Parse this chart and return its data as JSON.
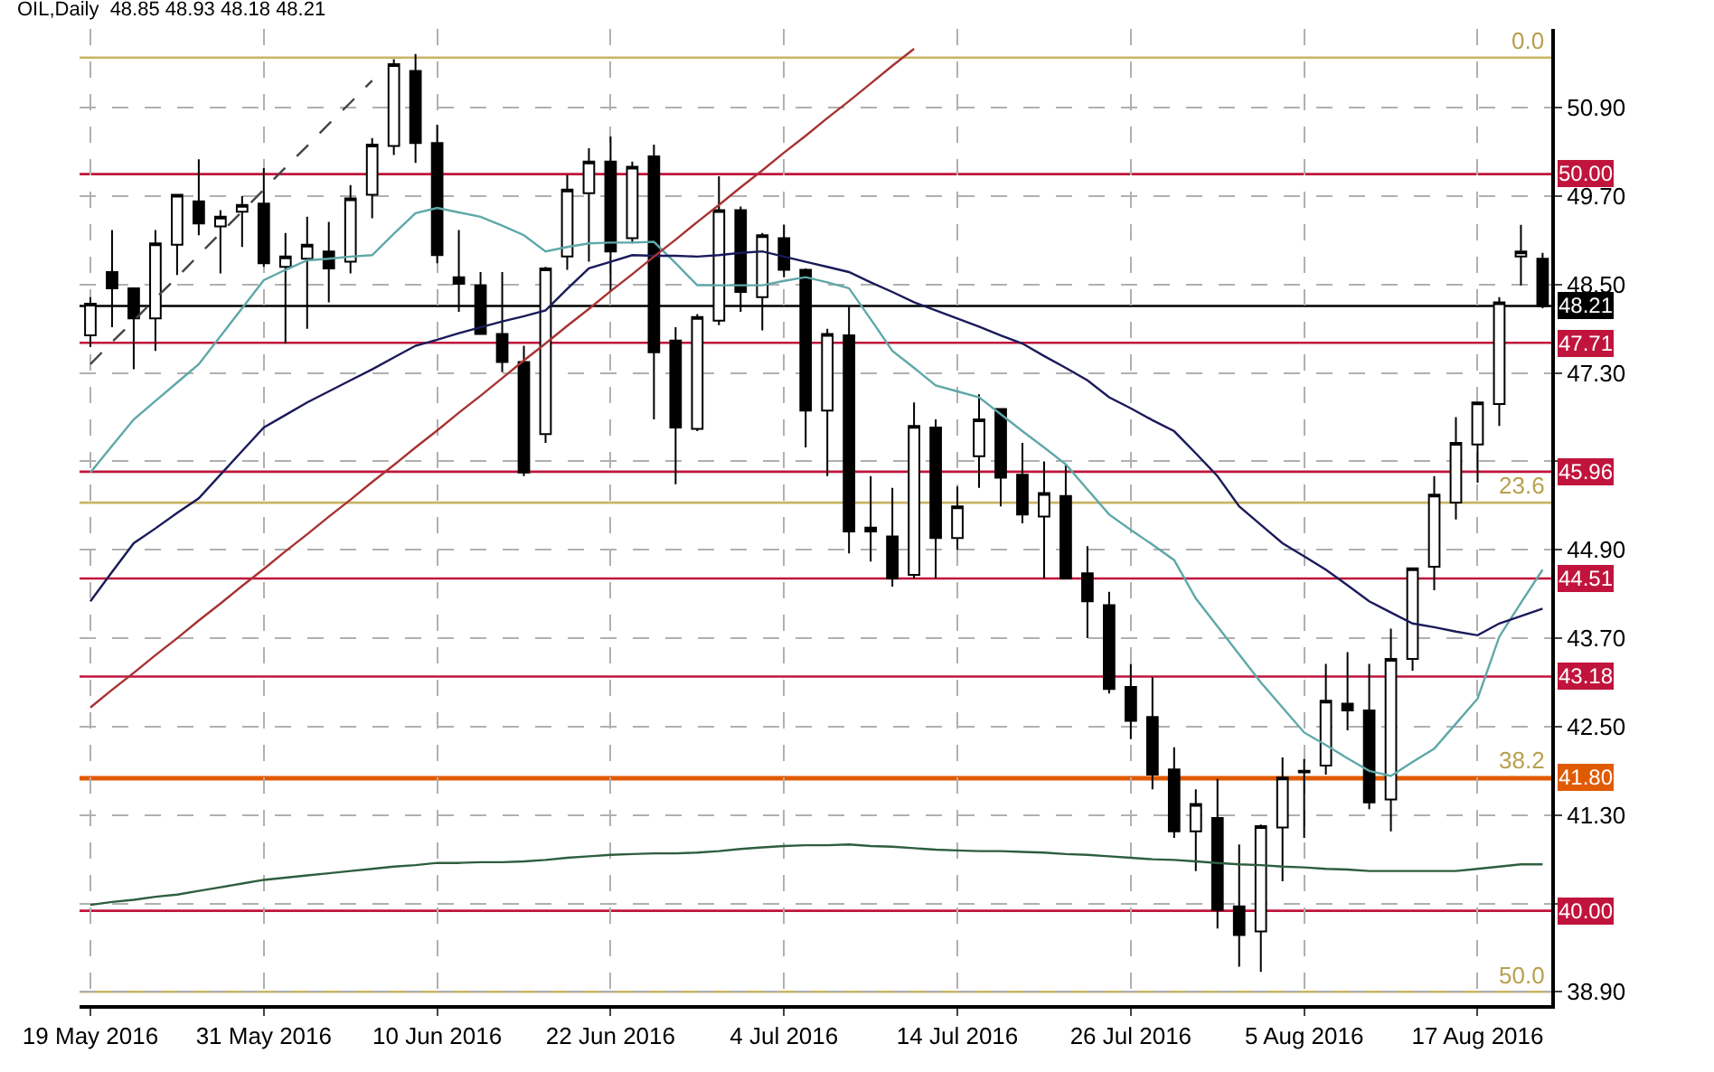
{
  "chart_data": {
    "type": "candlestick",
    "title": "OIL,Daily  48.85 48.93 48.18 48.21",
    "categories": [
      "19 May 2016",
      null,
      null,
      null,
      null,
      null,
      null,
      null,
      "31 May 2016",
      null,
      null,
      null,
      null,
      null,
      null,
      null,
      "10 Jun 2016",
      null,
      null,
      null,
      null,
      null,
      null,
      null,
      "22 Jun 2016",
      null,
      null,
      null,
      null,
      null,
      null,
      null,
      "4 Jul 2016",
      null,
      null,
      null,
      null,
      null,
      null,
      null,
      "14 Jul 2016",
      null,
      null,
      null,
      null,
      null,
      null,
      null,
      "26 Jul 2016",
      null,
      null,
      null,
      null,
      null,
      null,
      null,
      "5 Aug 2016",
      null,
      null,
      null,
      null,
      null,
      null,
      null,
      "17 Aug 2016",
      null,
      null,
      null
    ],
    "ohlc": [
      [
        47.81,
        48.33,
        47.65,
        48.24
      ],
      [
        48.67,
        49.24,
        47.92,
        48.45
      ],
      [
        48.45,
        48.45,
        47.35,
        48.04
      ],
      [
        48.04,
        49.24,
        47.6,
        49.06
      ],
      [
        49.04,
        49.72,
        48.63,
        49.72
      ],
      [
        49.63,
        50.2,
        49.17,
        49.33
      ],
      [
        49.29,
        49.51,
        48.65,
        49.42
      ],
      [
        49.49,
        49.7,
        49.01,
        49.58
      ],
      [
        49.6,
        50.08,
        48.74,
        48.79
      ],
      [
        48.74,
        49.2,
        47.7,
        48.88
      ],
      [
        48.85,
        49.42,
        47.9,
        49.04
      ],
      [
        48.95,
        49.35,
        48.26,
        48.72
      ],
      [
        48.81,
        49.85,
        48.65,
        49.67
      ],
      [
        49.72,
        50.49,
        49.4,
        50.4
      ],
      [
        50.38,
        51.56,
        50.26,
        51.49
      ],
      [
        51.4,
        51.63,
        50.15,
        50.42
      ],
      [
        50.42,
        50.67,
        48.79,
        48.9
      ],
      [
        48.6,
        49.24,
        48.13,
        48.51
      ],
      [
        48.49,
        48.67,
        47.83,
        47.83
      ],
      [
        47.83,
        48.67,
        47.31,
        47.45
      ],
      [
        47.45,
        47.67,
        45.9,
        45.95
      ],
      [
        46.47,
        48.74,
        46.35,
        48.72
      ],
      [
        48.88,
        49.99,
        48.7,
        49.79
      ],
      [
        49.74,
        50.35,
        48.81,
        50.17
      ],
      [
        50.17,
        50.51,
        48.4,
        48.95
      ],
      [
        49.13,
        50.17,
        49.06,
        50.1
      ],
      [
        50.24,
        50.4,
        46.67,
        47.58
      ],
      [
        47.74,
        47.92,
        45.79,
        46.56
      ],
      [
        46.54,
        48.1,
        46.51,
        48.06
      ],
      [
        48.01,
        49.97,
        47.95,
        49.51
      ],
      [
        49.51,
        49.56,
        48.13,
        48.4
      ],
      [
        48.33,
        49.2,
        47.88,
        49.17
      ],
      [
        49.13,
        49.31,
        48.6,
        48.7
      ],
      [
        48.7,
        48.72,
        46.29,
        46.79
      ],
      [
        46.79,
        47.9,
        45.9,
        47.83
      ],
      [
        47.81,
        48.2,
        44.85,
        45.15
      ],
      [
        45.2,
        45.9,
        44.74,
        45.15
      ],
      [
        45.08,
        45.74,
        44.4,
        44.51
      ],
      [
        44.56,
        46.9,
        44.51,
        46.58
      ],
      [
        46.56,
        46.67,
        44.51,
        45.06
      ],
      [
        45.06,
        45.76,
        44.9,
        45.49
      ],
      [
        46.17,
        47.01,
        45.74,
        46.67
      ],
      [
        46.81,
        46.81,
        45.49,
        45.88
      ],
      [
        45.92,
        46.35,
        45.26,
        45.38
      ],
      [
        45.35,
        46.1,
        44.51,
        45.67
      ],
      [
        45.63,
        46.06,
        44.51,
        44.51
      ],
      [
        44.58,
        44.95,
        43.7,
        44.2
      ],
      [
        44.15,
        44.33,
        42.95,
        43.01
      ],
      [
        43.04,
        43.35,
        42.33,
        42.58
      ],
      [
        42.63,
        43.17,
        41.65,
        41.85
      ],
      [
        41.92,
        42.22,
        40.99,
        41.08
      ],
      [
        41.08,
        41.65,
        40.54,
        41.45
      ],
      [
        41.26,
        41.79,
        39.76,
        40.01
      ],
      [
        40.06,
        40.9,
        39.24,
        39.67
      ],
      [
        39.72,
        41.17,
        39.17,
        41.15
      ],
      [
        41.13,
        42.08,
        40.4,
        41.81
      ],
      [
        41.88,
        42.06,
        40.99,
        41.9
      ],
      [
        41.97,
        43.35,
        41.85,
        42.85
      ],
      [
        42.81,
        43.51,
        42.45,
        42.72
      ],
      [
        42.72,
        43.35,
        41.38,
        41.47
      ],
      [
        41.51,
        43.83,
        41.08,
        43.42
      ],
      [
        43.42,
        44.65,
        43.26,
        44.65
      ],
      [
        44.67,
        45.9,
        44.35,
        45.65
      ],
      [
        45.54,
        46.7,
        45.31,
        46.35
      ],
      [
        46.33,
        46.9,
        45.81,
        46.9
      ],
      [
        46.88,
        48.33,
        46.58,
        48.26
      ],
      [
        48.88,
        49.31,
        48.49,
        48.95
      ],
      [
        48.85,
        48.93,
        48.18,
        48.21
      ]
    ],
    "series": [
      {
        "type": "line",
        "color": "#5fa8a8",
        "values": [
          45.95,
          46.31,
          46.67,
          46.92,
          47.17,
          47.42,
          47.8,
          48.18,
          48.56,
          48.7,
          48.83,
          48.85,
          48.88,
          48.9,
          49.19,
          49.47,
          49.54,
          49.48,
          49.42,
          49.3,
          49.17,
          48.95,
          49.01,
          49.06,
          49.07,
          49.07,
          49.08,
          48.79,
          48.49,
          48.49,
          48.49,
          48.49,
          48.55,
          48.6,
          48.53,
          48.45,
          48.03,
          47.6,
          47.37,
          47.13,
          47.05,
          46.97,
          46.74,
          46.51,
          46.29,
          46.06,
          45.72,
          45.38,
          45.17,
          44.97,
          44.76,
          44.24,
          43.86,
          43.48,
          43.1,
          42.76,
          42.42,
          42.25,
          42.07,
          41.9,
          41.83,
          42.02,
          42.2,
          42.54,
          42.88,
          43.72,
          44.18,
          44.63
        ]
      },
      {
        "type": "line",
        "color": "#1a1a5a",
        "values": [
          44.2,
          44.6,
          44.99,
          45.19,
          45.4,
          45.6,
          45.92,
          46.24,
          46.56,
          46.73,
          46.9,
          47.05,
          47.2,
          47.35,
          47.51,
          47.67,
          47.75,
          47.84,
          47.92,
          48.0,
          48.07,
          48.15,
          48.44,
          48.72,
          48.81,
          48.9,
          48.89,
          48.89,
          48.88,
          48.9,
          48.93,
          48.95,
          48.88,
          48.81,
          48.74,
          48.67,
          48.53,
          48.4,
          48.26,
          48.15,
          48.04,
          47.93,
          47.81,
          47.7,
          47.53,
          47.37,
          47.2,
          46.97,
          46.82,
          46.66,
          46.51,
          46.21,
          45.9,
          45.49,
          45.24,
          44.99,
          44.81,
          44.63,
          44.42,
          44.2,
          44.05,
          43.9,
          43.85,
          43.79,
          43.74,
          43.9,
          44.0,
          44.1
        ]
      },
      {
        "type": "line",
        "color": "#2e5e3e",
        "values": [
          40.08,
          40.12,
          40.15,
          40.19,
          40.22,
          40.27,
          40.32,
          40.37,
          40.42,
          40.45,
          40.48,
          40.51,
          40.54,
          40.57,
          40.6,
          40.62,
          40.65,
          40.65,
          40.66,
          40.66,
          40.67,
          40.69,
          40.72,
          40.74,
          40.76,
          40.77,
          40.78,
          40.78,
          40.79,
          40.81,
          40.84,
          40.86,
          40.88,
          40.89,
          40.89,
          40.9,
          40.88,
          40.87,
          40.85,
          40.83,
          40.82,
          40.81,
          40.81,
          40.8,
          40.79,
          40.77,
          40.76,
          40.74,
          40.72,
          40.7,
          40.69,
          40.67,
          40.65,
          40.63,
          40.62,
          40.6,
          40.59,
          40.57,
          40.56,
          40.54,
          40.54,
          40.54,
          40.54,
          40.54,
          40.57,
          40.6,
          40.63,
          40.63
        ]
      },
      {
        "type": "line",
        "color": "#a83232",
        "values": [
          42.76,
          43.0,
          43.23,
          43.47,
          43.7,
          43.94,
          44.17,
          44.41,
          44.64,
          44.88,
          45.11,
          45.35,
          45.58,
          45.82,
          46.05,
          46.29,
          46.52,
          46.76,
          46.99,
          47.23,
          47.47,
          47.7,
          47.94,
          48.17,
          48.41,
          48.64,
          48.88,
          49.11,
          49.35,
          49.58,
          49.82,
          50.05,
          50.29,
          50.52,
          50.76,
          50.99,
          51.23,
          51.47,
          51.7,
          null,
          null,
          null,
          null,
          null,
          null,
          null,
          null,
          null,
          null,
          null,
          null,
          null,
          null,
          null,
          null,
          null,
          null,
          null,
          null,
          null,
          null,
          null,
          null,
          null,
          null,
          null,
          null,
          null
        ]
      },
      {
        "type": "line",
        "color": "#444444",
        "line_style": "dashed",
        "values": [
          47.42,
          47.72,
          48.01,
          48.31,
          48.6,
          48.9,
          49.2,
          49.49,
          49.79,
          50.09,
          50.38,
          50.68,
          50.97,
          51.27,
          null,
          null,
          null,
          null,
          null,
          null,
          null,
          null,
          null,
          null,
          null,
          null,
          null,
          null,
          null,
          null,
          null,
          null,
          null,
          null,
          null,
          null,
          null,
          null,
          null,
          null,
          null,
          null,
          null,
          null,
          null,
          null,
          null,
          null,
          null,
          null,
          null,
          null,
          null,
          null,
          null,
          null,
          null,
          null,
          null,
          null,
          null,
          null,
          null,
          null,
          null,
          null,
          null,
          null
        ]
      }
    ],
    "ylim": [
      38.72,
      51.97
    ],
    "yticks": [
      {
        "value": 38.9,
        "label": "38.90"
      },
      {
        "value": 40.1,
        "label": null
      },
      {
        "value": 41.3,
        "label": "41.30"
      },
      {
        "value": 42.5,
        "label": "42.50"
      },
      {
        "value": 43.7,
        "label": "43.70"
      },
      {
        "value": 44.9,
        "label": "44.90"
      },
      {
        "value": 46.1,
        "label": null
      },
      {
        "value": 47.3,
        "label": "47.30"
      },
      {
        "value": 48.5,
        "label": "48.50"
      },
      {
        "value": 49.7,
        "label": "49.70"
      },
      {
        "value": 50.9,
        "label": "50.90"
      }
    ],
    "ref_lines": [
      {
        "axis": "y",
        "value": 51.58,
        "color": "#c8b464"
      },
      {
        "axis": "y",
        "value": 45.54,
        "color": "#c8b464"
      },
      {
        "axis": "y",
        "value": 38.9,
        "color": "#c8b464"
      },
      {
        "axis": "y",
        "value": 50.0,
        "label": "50.00",
        "color": "#c0143c"
      },
      {
        "axis": "y",
        "value": 48.21,
        "label": "48.21",
        "color": "#000000"
      },
      {
        "axis": "y",
        "value": 47.71,
        "label": "47.71",
        "color": "#c0143c"
      },
      {
        "axis": "y",
        "value": 45.96,
        "label": "45.96",
        "color": "#c0143c"
      },
      {
        "axis": "y",
        "value": 44.51,
        "label": "44.51",
        "color": "#c0143c"
      },
      {
        "axis": "y",
        "value": 43.18,
        "label": "43.18",
        "color": "#c0143c"
      },
      {
        "axis": "y",
        "value": 41.8,
        "label": "41.80",
        "color": "#e05a00"
      },
      {
        "axis": "y",
        "value": 40.0,
        "label": "40.00",
        "color": "#c0143c"
      }
    ],
    "annotations": [
      {
        "text": "0.0",
        "y": 51.58
      },
      {
        "text": "23.6",
        "y": 45.54
      },
      {
        "text": "38.2",
        "y": 41.8
      },
      {
        "text": "50.0",
        "y": 38.9
      }
    ],
    "grid": true
  }
}
